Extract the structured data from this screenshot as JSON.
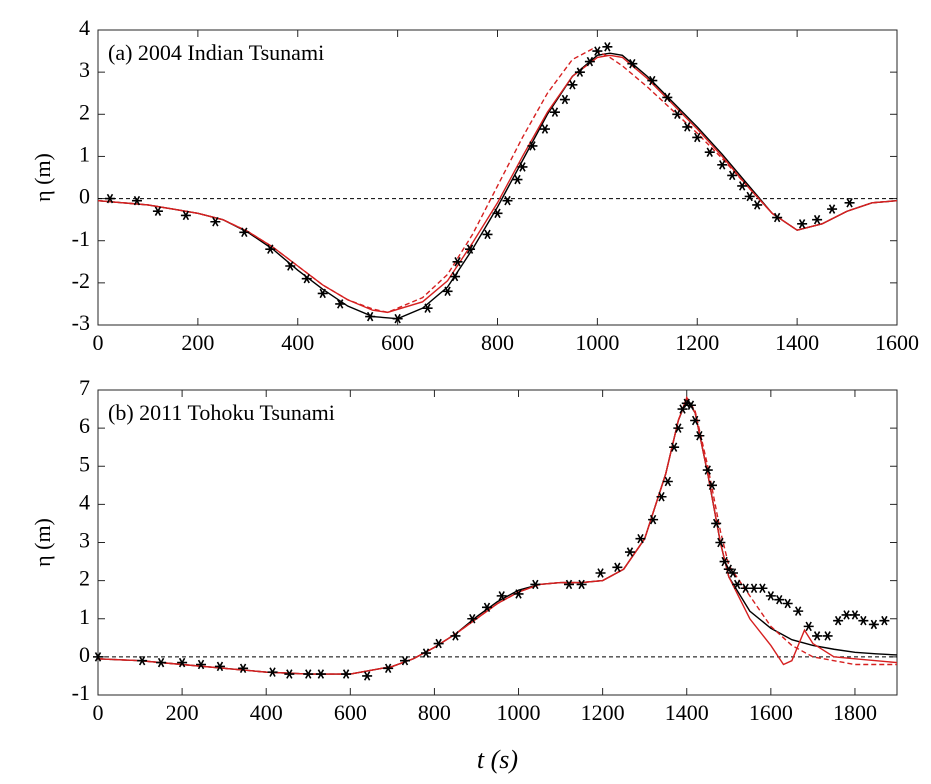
{
  "chart_data": [
    {
      "type": "line",
      "annotation": "(a) 2004 Indian Tsunami",
      "y_label": "η (m)",
      "xlim": [
        0,
        1600
      ],
      "ylim": [
        -3,
        4
      ],
      "xticks": [
        0,
        200,
        400,
        600,
        800,
        1000,
        1200,
        1400,
        1600
      ],
      "yticks": [
        -3,
        -2,
        -1,
        0,
        1,
        2,
        3,
        4
      ],
      "hline": 0,
      "series": [
        {
          "style": "marker",
          "color": "#000000",
          "x": [
            24,
            78,
            120,
            176,
            235,
            293,
            345,
            385,
            418,
            450,
            485,
            545,
            600,
            660,
            700,
            715,
            720,
            745,
            780,
            800,
            820,
            840,
            850,
            870,
            895,
            915,
            935,
            950,
            965,
            985,
            1000,
            1020,
            1070,
            1110,
            1140,
            1160,
            1180,
            1200,
            1225,
            1250,
            1270,
            1290,
            1305,
            1320,
            1360,
            1410,
            1440,
            1470,
            1505
          ],
          "values": [
            0,
            -0.05,
            -0.3,
            -0.4,
            -0.55,
            -0.8,
            -1.2,
            -1.6,
            -1.9,
            -2.25,
            -2.5,
            -2.8,
            -2.85,
            -2.6,
            -2.2,
            -1.85,
            -1.5,
            -1.2,
            -0.85,
            -0.35,
            -0.05,
            0.45,
            0.75,
            1.25,
            1.65,
            2.05,
            2.35,
            2.7,
            3.0,
            3.25,
            3.5,
            3.6,
            3.2,
            2.8,
            2.4,
            2.0,
            1.7,
            1.45,
            1.1,
            0.8,
            0.55,
            0.3,
            0.05,
            -0.15,
            -0.45,
            -0.6,
            -0.5,
            -0.25,
            -0.1
          ]
        },
        {
          "style": "solid",
          "color": "#000000",
          "x": [
            0,
            50,
            100,
            150,
            200,
            250,
            300,
            350,
            400,
            450,
            500,
            550,
            600,
            650,
            700,
            750,
            800,
            850,
            900,
            950,
            1000,
            1025,
            1050,
            1100,
            1150,
            1200,
            1250,
            1300,
            1350,
            1400,
            1450,
            1500,
            1550,
            1600
          ],
          "values": [
            -0.05,
            -0.1,
            -0.15,
            -0.25,
            -0.35,
            -0.5,
            -0.8,
            -1.2,
            -1.7,
            -2.15,
            -2.55,
            -2.8,
            -2.85,
            -2.6,
            -2.1,
            -1.2,
            -0.2,
            0.9,
            2.0,
            2.9,
            3.4,
            3.45,
            3.4,
            2.9,
            2.3,
            1.7,
            1.05,
            0.35,
            -0.35,
            -0.75,
            -0.6,
            -0.3,
            -0.1,
            -0.05
          ]
        },
        {
          "style": "solid",
          "color": "#d62020",
          "x": [
            0,
            50,
            100,
            150,
            200,
            250,
            300,
            350,
            400,
            450,
            500,
            550,
            580,
            650,
            700,
            750,
            800,
            850,
            900,
            950,
            1000,
            1025,
            1050,
            1100,
            1150,
            1200,
            1250,
            1300,
            1350,
            1400,
            1450,
            1500,
            1550,
            1600
          ],
          "values": [
            -0.05,
            -0.1,
            -0.15,
            -0.25,
            -0.35,
            -0.5,
            -0.78,
            -1.15,
            -1.6,
            -2.05,
            -2.4,
            -2.65,
            -2.7,
            -2.45,
            -1.95,
            -1.05,
            -0.1,
            1.0,
            2.05,
            2.9,
            3.35,
            3.4,
            3.35,
            2.85,
            2.25,
            1.65,
            1.0,
            0.3,
            -0.35,
            -0.75,
            -0.6,
            -0.3,
            -0.1,
            -0.05
          ]
        },
        {
          "style": "dashed",
          "color": "#d62020",
          "x": [
            0,
            50,
            100,
            150,
            200,
            250,
            300,
            350,
            400,
            450,
            500,
            550,
            580,
            650,
            700,
            750,
            800,
            850,
            900,
            950,
            990,
            1025,
            1050,
            1100,
            1150,
            1200,
            1250,
            1300,
            1350,
            1400,
            1450,
            1500,
            1550,
            1600
          ],
          "values": [
            -0.05,
            -0.1,
            -0.15,
            -0.25,
            -0.35,
            -0.5,
            -0.78,
            -1.15,
            -1.6,
            -2.05,
            -2.4,
            -2.62,
            -2.7,
            -2.35,
            -1.8,
            -0.85,
            0.3,
            1.45,
            2.5,
            3.3,
            3.55,
            3.35,
            3.15,
            2.65,
            2.1,
            1.55,
            0.95,
            0.3,
            -0.35,
            -0.75,
            -0.6,
            -0.3,
            -0.1,
            -0.05
          ]
        }
      ]
    },
    {
      "type": "line",
      "annotation": "(b) 2011 Tohoku Tsunami",
      "y_label": "η (m)",
      "x_label": "t (s)",
      "xlim": [
        0,
        1900
      ],
      "ylim": [
        -1,
        7
      ],
      "xticks": [
        0,
        200,
        400,
        600,
        800,
        1000,
        1200,
        1400,
        1600,
        1800
      ],
      "yticks": [
        -1,
        0,
        1,
        2,
        3,
        4,
        5,
        6,
        7
      ],
      "hline": 0,
      "series": [
        {
          "style": "marker",
          "color": "#000000",
          "x": [
            0,
            105,
            150,
            200,
            245,
            290,
            345,
            415,
            455,
            500,
            530,
            590,
            640,
            690,
            730,
            780,
            810,
            850,
            890,
            925,
            960,
            1000,
            1040,
            1120,
            1150,
            1195,
            1235,
            1265,
            1290,
            1320,
            1340,
            1355,
            1370,
            1380,
            1390,
            1400,
            1410,
            1420,
            1430,
            1450,
            1460,
            1470,
            1480,
            1490,
            1500,
            1510,
            1520,
            1540,
            1560,
            1580,
            1600,
            1620,
            1640,
            1665,
            1690,
            1710,
            1735,
            1760,
            1780,
            1800,
            1820,
            1845,
            1870
          ],
          "values": [
            0,
            -0.1,
            -0.15,
            -0.15,
            -0.2,
            -0.25,
            -0.3,
            -0.4,
            -0.45,
            -0.45,
            -0.45,
            -0.45,
            -0.5,
            -0.3,
            -0.1,
            0.1,
            0.35,
            0.55,
            1.0,
            1.3,
            1.6,
            1.65,
            1.9,
            1.9,
            1.9,
            2.2,
            2.35,
            2.75,
            3.1,
            3.6,
            4.2,
            4.6,
            5.5,
            6.0,
            6.5,
            6.65,
            6.6,
            6.2,
            5.8,
            4.9,
            4.5,
            3.5,
            3.0,
            2.5,
            2.3,
            2.2,
            1.9,
            1.8,
            1.8,
            1.8,
            1.6,
            1.5,
            1.4,
            1.2,
            0.8,
            0.55,
            0.55,
            0.95,
            1.1,
            1.1,
            0.95,
            0.85,
            0.95
          ]
        },
        {
          "style": "solid",
          "color": "#000000",
          "x": [
            0,
            100,
            200,
            300,
            400,
            500,
            600,
            700,
            750,
            800,
            850,
            900,
            950,
            1000,
            1050,
            1100,
            1150,
            1200,
            1250,
            1300,
            1350,
            1380,
            1400,
            1420,
            1450,
            1480,
            1500,
            1550,
            1600,
            1650,
            1700,
            1750,
            1800,
            1850,
            1900
          ],
          "values": [
            -0.05,
            -0.1,
            -0.2,
            -0.3,
            -0.4,
            -0.45,
            -0.45,
            -0.25,
            -0.05,
            0.25,
            0.6,
            1.05,
            1.45,
            1.75,
            1.9,
            1.95,
            1.95,
            2.0,
            2.3,
            3.1,
            4.8,
            6.2,
            6.75,
            6.4,
            4.8,
            3.0,
            2.1,
            1.2,
            0.75,
            0.45,
            0.3,
            0.2,
            0.12,
            0.08,
            0.05
          ]
        },
        {
          "style": "solid",
          "color": "#d62020",
          "x": [
            0,
            100,
            200,
            300,
            400,
            500,
            600,
            700,
            750,
            800,
            850,
            900,
            950,
            1000,
            1050,
            1100,
            1150,
            1200,
            1250,
            1300,
            1350,
            1380,
            1400,
            1420,
            1450,
            1480,
            1500,
            1550,
            1600,
            1630,
            1650,
            1680,
            1700,
            1750,
            1800,
            1850,
            1900
          ],
          "values": [
            -0.05,
            -0.1,
            -0.2,
            -0.3,
            -0.4,
            -0.45,
            -0.45,
            -0.25,
            -0.05,
            0.25,
            0.6,
            1.0,
            1.4,
            1.7,
            1.9,
            1.95,
            1.95,
            2.0,
            2.3,
            3.1,
            4.8,
            6.2,
            6.8,
            6.4,
            4.8,
            3.0,
            2.1,
            1.0,
            0.3,
            -0.2,
            -0.1,
            0.7,
            0.35,
            0.0,
            -0.05,
            -0.1,
            -0.15
          ]
        },
        {
          "style": "dashed",
          "color": "#d62020",
          "x": [
            0,
            100,
            200,
            300,
            400,
            500,
            600,
            700,
            750,
            800,
            850,
            900,
            950,
            1000,
            1050,
            1100,
            1150,
            1200,
            1250,
            1300,
            1350,
            1380,
            1400,
            1420,
            1450,
            1480,
            1500,
            1550,
            1600,
            1650,
            1700,
            1750,
            1800,
            1850,
            1900
          ],
          "values": [
            -0.05,
            -0.1,
            -0.2,
            -0.3,
            -0.4,
            -0.45,
            -0.45,
            -0.25,
            -0.05,
            0.25,
            0.6,
            1.0,
            1.4,
            1.7,
            1.9,
            1.95,
            1.95,
            2.0,
            2.3,
            3.1,
            4.8,
            6.2,
            6.8,
            6.45,
            5.0,
            3.3,
            2.4,
            1.6,
            0.8,
            0.3,
            0.0,
            -0.1,
            -0.2,
            -0.2,
            -0.2
          ]
        }
      ]
    }
  ]
}
